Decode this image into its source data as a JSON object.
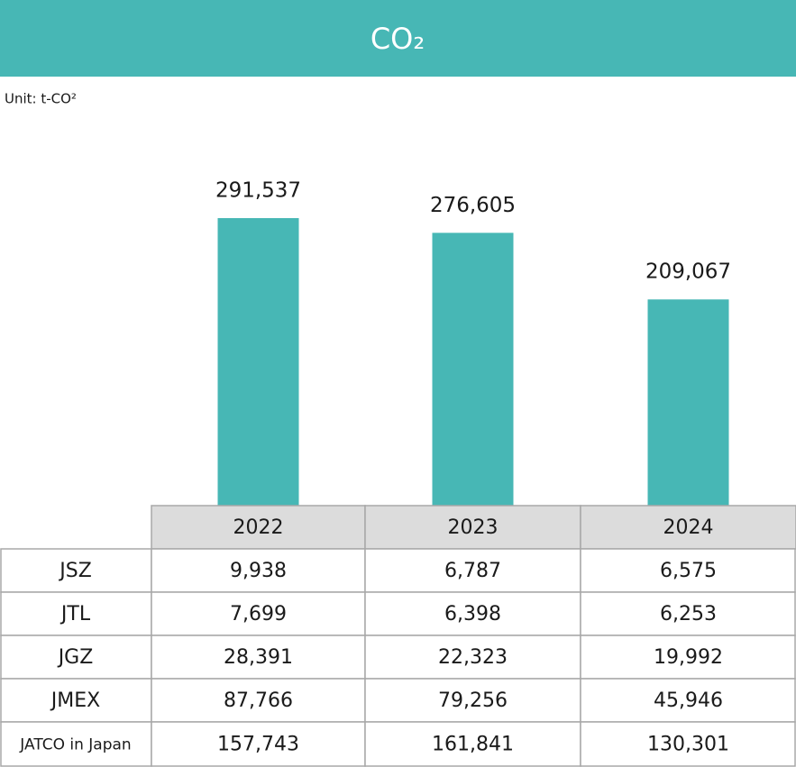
{
  "chart_data": {
    "type": "bar",
    "title": "CO₂",
    "subtitle": "Unit: t-CO²",
    "categories": [
      "2022",
      "2023",
      "2024"
    ],
    "values": [
      291537,
      276605,
      209067
    ],
    "value_labels": [
      "291,537",
      "276,605",
      "209,067"
    ],
    "color": "#47b7b5"
  },
  "table": {
    "rows": [
      [
        "JSZ",
        "9,938",
        "6,787",
        "6,575"
      ],
      [
        "JTL",
        "7,699",
        "6,398",
        "6,253"
      ],
      [
        "JGZ",
        "28,391",
        "22,323",
        "19,992"
      ],
      [
        "JMEX",
        "87,766",
        "79,256",
        "45,946"
      ],
      [
        "JATCO in Japan",
        "157,743",
        "161,841",
        "130,301"
      ]
    ]
  }
}
